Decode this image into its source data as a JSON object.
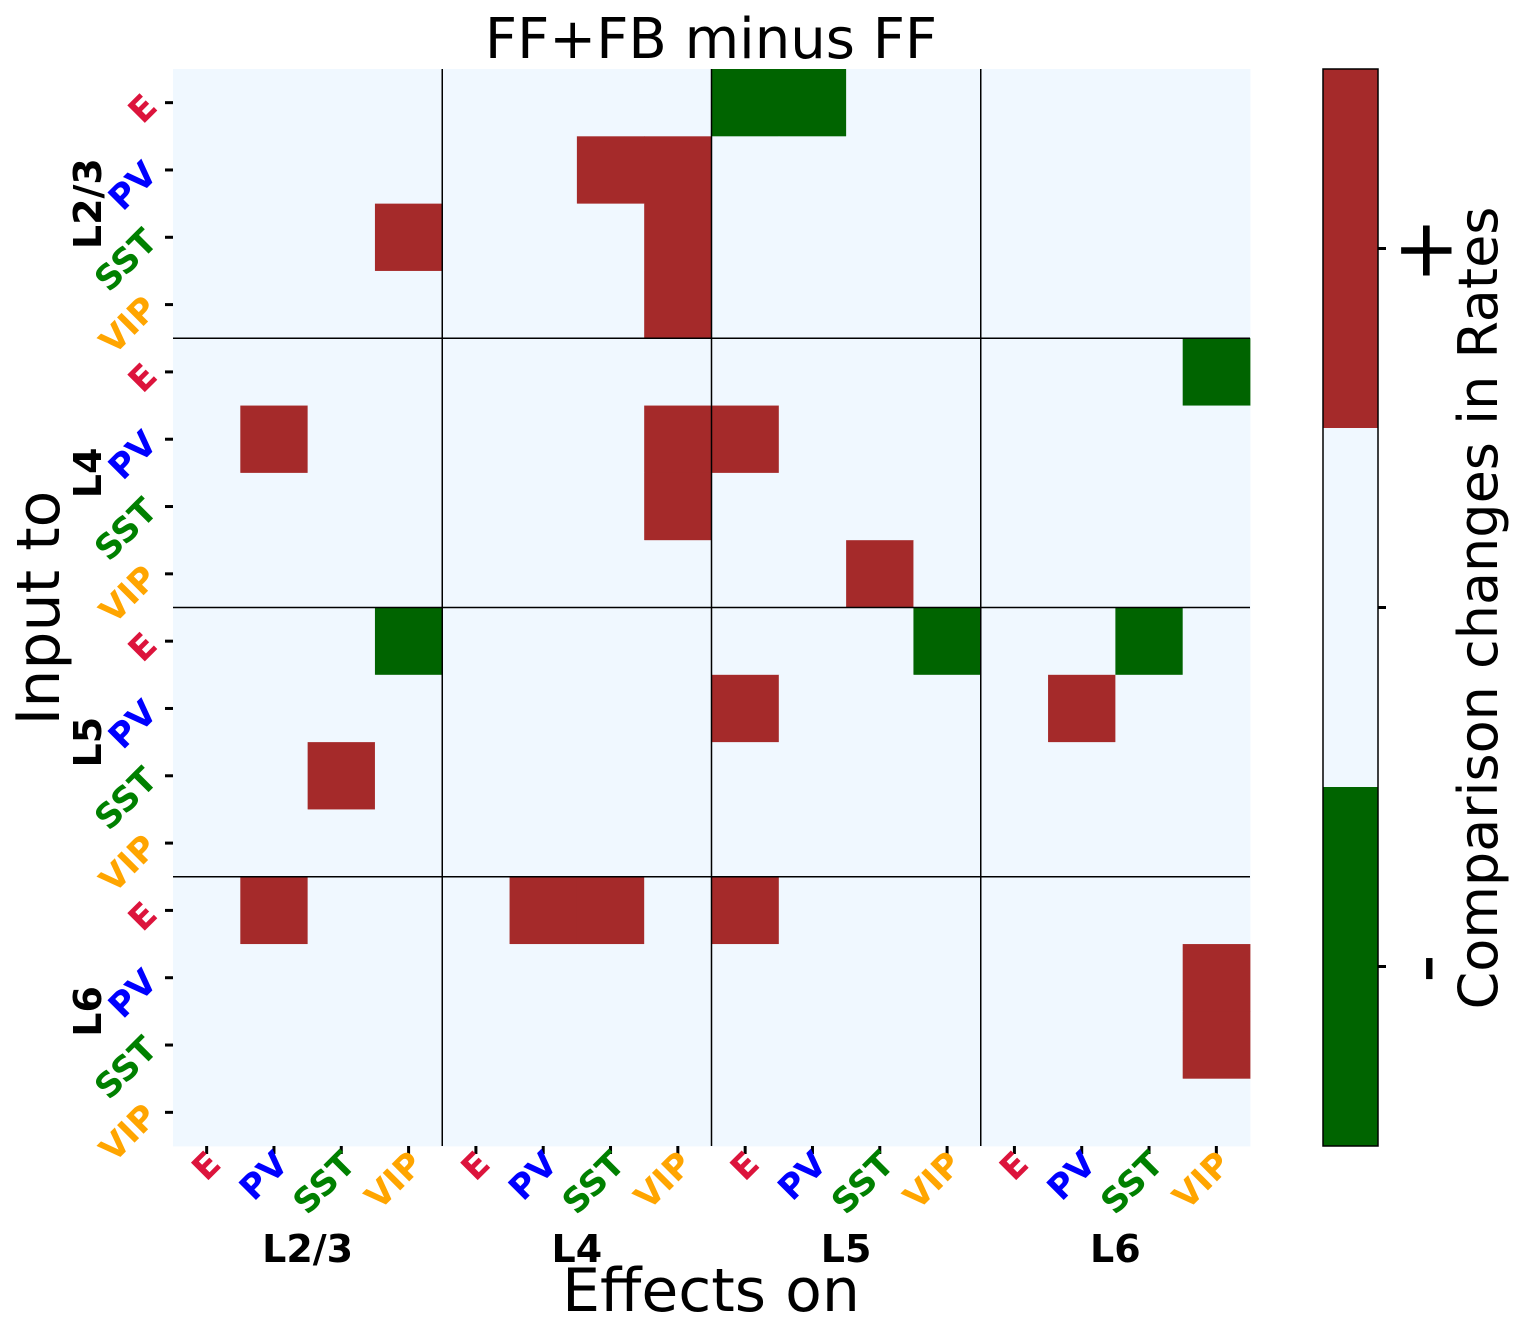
{
  "chart_data": {
    "type": "heatmap",
    "title": "FF+FB minus FF",
    "xlabel": "Effects on",
    "ylabel": "Input to",
    "colorbar_label": "Comparison changes in Rates",
    "colorbar_ticks": [
      "-",
      "",
      "+"
    ],
    "layers": [
      "L2/3",
      "L4",
      "L5",
      "L6"
    ],
    "cell_types": [
      "E",
      "PV",
      "SST",
      "VIP"
    ],
    "cell_type_colors": {
      "E": "#dc143c",
      "PV": "#0000ff",
      "SST": "#008000",
      "VIP": "#ffa500"
    },
    "value_colors": {
      "-1": "#006400",
      "0": "#f0f8ff",
      "1": "#a52a2a"
    },
    "legend_position": "right",
    "values": [
      [
        0,
        0,
        0,
        0,
        0,
        0,
        0,
        0,
        -1,
        -1,
        0,
        0,
        0,
        0,
        0,
        0
      ],
      [
        0,
        0,
        0,
        0,
        0,
        0,
        1,
        1,
        0,
        0,
        0,
        0,
        0,
        0,
        0,
        0
      ],
      [
        0,
        0,
        0,
        1,
        0,
        0,
        0,
        1,
        0,
        0,
        0,
        0,
        0,
        0,
        0,
        0
      ],
      [
        0,
        0,
        0,
        0,
        0,
        0,
        0,
        1,
        0,
        0,
        0,
        0,
        0,
        0,
        0,
        0
      ],
      [
        0,
        0,
        0,
        0,
        0,
        0,
        0,
        0,
        0,
        0,
        0,
        0,
        0,
        0,
        0,
        -1
      ],
      [
        0,
        1,
        0,
        0,
        0,
        0,
        0,
        1,
        1,
        0,
        0,
        0,
        0,
        0,
        0,
        0
      ],
      [
        0,
        0,
        0,
        0,
        0,
        0,
        0,
        1,
        0,
        0,
        0,
        0,
        0,
        0,
        0,
        0
      ],
      [
        0,
        0,
        0,
        0,
        0,
        0,
        0,
        0,
        0,
        0,
        1,
        0,
        0,
        0,
        0,
        0
      ],
      [
        0,
        0,
        0,
        -1,
        0,
        0,
        0,
        0,
        0,
        0,
        0,
        -1,
        0,
        0,
        -1,
        0
      ],
      [
        0,
        0,
        0,
        0,
        0,
        0,
        0,
        0,
        1,
        0,
        0,
        0,
        0,
        1,
        0,
        0
      ],
      [
        0,
        0,
        1,
        0,
        0,
        0,
        0,
        0,
        0,
        0,
        0,
        0,
        0,
        0,
        0,
        0
      ],
      [
        0,
        0,
        0,
        0,
        0,
        0,
        0,
        0,
        0,
        0,
        0,
        0,
        0,
        0,
        0,
        0
      ],
      [
        0,
        1,
        0,
        0,
        0,
        1,
        1,
        0,
        1,
        0,
        0,
        0,
        0,
        0,
        0,
        0
      ],
      [
        0,
        0,
        0,
        0,
        0,
        0,
        0,
        0,
        0,
        0,
        0,
        0,
        0,
        0,
        0,
        1
      ],
      [
        0,
        0,
        0,
        0,
        0,
        0,
        0,
        0,
        0,
        0,
        0,
        0,
        0,
        0,
        0,
        1
      ],
      [
        0,
        0,
        0,
        0,
        0,
        0,
        0,
        0,
        0,
        0,
        0,
        0,
        0,
        0,
        0,
        0
      ]
    ]
  }
}
